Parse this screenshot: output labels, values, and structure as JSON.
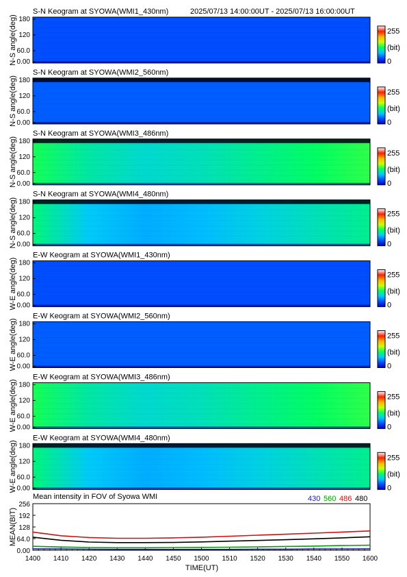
{
  "header": {
    "time_range": "2025/07/13 14:00:00UT - 2025/07/13 16:00:00UT"
  },
  "colorbar": {
    "max_label": "255",
    "unit_label": "(bit)",
    "min_label": "0",
    "colors": [
      "#0000c8",
      "#0050ff",
      "#00c8ff",
      "#00ff60",
      "#c8ff00",
      "#ffb400",
      "#ff2000",
      "#ffffff"
    ]
  },
  "keograms": [
    {
      "title": "S-N Keogram at SYOWA(WMI1_430nm)",
      "ylabel": "N-S angle(deg)",
      "ticks": [
        "180",
        "120",
        "60.0",
        "0.00"
      ],
      "base_color": "#0a22b4",
      "edge_color": "#0a1f9e",
      "profile": [
        0.05,
        0.05,
        0.05,
        0.05,
        0.05,
        0.05,
        0.05
      ],
      "dark_top": false
    },
    {
      "title": "S-N Keogram at SYOWA(WMI2_560nm)",
      "ylabel": "N-S angle(deg)",
      "ticks": [
        "180",
        "120",
        "60.0",
        "0.00"
      ],
      "base_color": "#0a2ccc",
      "edge_color": "#0a1f9e",
      "profile": [
        0.1,
        0.1,
        0.1,
        0.1,
        0.1,
        0.1,
        0.1
      ],
      "dark_top": true
    },
    {
      "title": "S-N Keogram at SYOWA(WMI3_486nm)",
      "ylabel": "N-S angle(deg)",
      "ticks": [
        "180",
        "120",
        "60.0",
        "0.00"
      ],
      "base_color": "#14d86a",
      "edge_color": "#22c84a",
      "profile": [
        0.85,
        0.65,
        0.55,
        0.6,
        0.7,
        0.8,
        0.9
      ],
      "dark_top": true
    },
    {
      "title": "S-N Keogram at SYOWA(WMI4_480nm)",
      "ylabel": "N-S angle(deg)",
      "ticks": [
        "180",
        "120",
        "60.0",
        "0.00"
      ],
      "base_color": "#10a8a0",
      "edge_color": "#22c84a",
      "profile": [
        0.75,
        0.45,
        0.35,
        0.4,
        0.5,
        0.6,
        0.7
      ],
      "dark_top": true
    },
    {
      "title": "E-W Keogram at SYOWA(WMI1_430nm)",
      "ylabel": "W-E angle(deg)",
      "ticks": [
        "180",
        "120",
        "60.0",
        "0.00"
      ],
      "base_color": "#0a22b4",
      "edge_color": "#0a1f9e",
      "profile": [
        0.05,
        0.05,
        0.05,
        0.05,
        0.05,
        0.05,
        0.05
      ],
      "dark_top": false
    },
    {
      "title": "E-W Keogram at SYOWA(WMI2_560nm)",
      "ylabel": "W-E angle(deg)",
      "ticks": [
        "180",
        "120",
        "60.0",
        "0.00"
      ],
      "base_color": "#0a2ccc",
      "edge_color": "#0a1f9e",
      "profile": [
        0.1,
        0.1,
        0.1,
        0.1,
        0.1,
        0.1,
        0.1
      ],
      "dark_top": false
    },
    {
      "title": "E-W Keogram at SYOWA(WMI3_486nm)",
      "ylabel": "W-E angle(deg)",
      "ticks": [
        "180",
        "120",
        "60.0",
        "0.00"
      ],
      "base_color": "#14d86a",
      "edge_color": "#22c84a",
      "profile": [
        0.85,
        0.65,
        0.55,
        0.6,
        0.7,
        0.8,
        0.9
      ],
      "dark_top": false
    },
    {
      "title": "E-W Keogram at SYOWA(WMI4_480nm)",
      "ylabel": "W-E angle(deg)",
      "ticks": [
        "180",
        "120",
        "60.0",
        "0.00"
      ],
      "base_color": "#10a8a0",
      "edge_color": "#22c84a",
      "profile": [
        0.75,
        0.45,
        0.35,
        0.4,
        0.5,
        0.6,
        0.7
      ],
      "dark_top": true
    }
  ],
  "chart_data": {
    "type": "line",
    "title": "Mean intensity in FOV of Syowa WMI",
    "xlabel": "TIME(UT)",
    "ylabel": "MEAN(BIT)",
    "x_ticks": [
      "1400",
      "1410",
      "1420",
      "1430",
      "1440",
      "1450",
      "1500",
      "1510",
      "1520",
      "1530",
      "1540",
      "1550",
      "1600"
    ],
    "y_ticks": [
      "256",
      "192",
      "128",
      "64.0",
      "0.00"
    ],
    "xlim": [
      0,
      120
    ],
    "ylim": [
      0,
      256
    ],
    "x": [
      0,
      10,
      20,
      30,
      40,
      50,
      60,
      70,
      80,
      90,
      100,
      110,
      120
    ],
    "series": [
      {
        "name": "430",
        "color": "#2020a0",
        "values": [
          8,
          7,
          6,
          5,
          5,
          5,
          5,
          5,
          6,
          6,
          7,
          7,
          8
        ]
      },
      {
        "name": "560",
        "color": "#00a000",
        "values": [
          22,
          18,
          15,
          14,
          14,
          15,
          16,
          17,
          19,
          21,
          23,
          26,
          28
        ]
      },
      {
        "name": "486",
        "color": "#d01010",
        "values": [
          100,
          80,
          70,
          66,
          66,
          68,
          72,
          77,
          83,
          88,
          94,
          100,
          106
        ]
      },
      {
        "name": "480",
        "color": "#000000",
        "values": [
          72,
          55,
          45,
          42,
          42,
          43,
          46,
          50,
          54,
          58,
          63,
          68,
          74
        ]
      }
    ]
  }
}
